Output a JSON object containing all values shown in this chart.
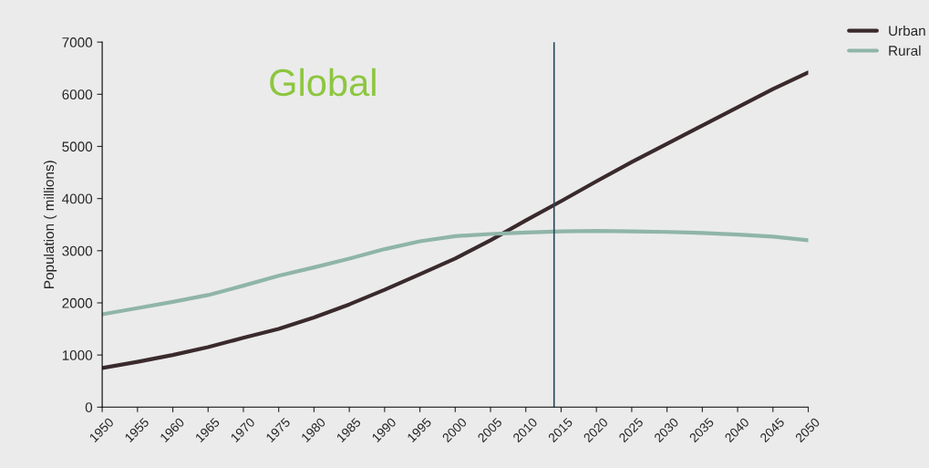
{
  "chart_data": {
    "type": "line",
    "title": "Global",
    "ylabel": "Population ( millions)",
    "x": [
      1950,
      1955,
      1960,
      1965,
      1970,
      1975,
      1980,
      1985,
      1990,
      1995,
      2000,
      2005,
      2010,
      2015,
      2020,
      2025,
      2030,
      2035,
      2040,
      2045,
      2050
    ],
    "series": [
      {
        "name": "Urban",
        "color": "#3a2a2c",
        "values": [
          750,
          870,
          1000,
          1150,
          1330,
          1500,
          1720,
          1970,
          2250,
          2550,
          2850,
          3200,
          3580,
          3950,
          4330,
          4700,
          5050,
          5400,
          5750,
          6100,
          6420
        ]
      },
      {
        "name": "Rural",
        "color": "#8fb5a8",
        "values": [
          1780,
          1900,
          2020,
          2150,
          2330,
          2520,
          2680,
          2850,
          3030,
          3180,
          3280,
          3320,
          3350,
          3370,
          3380,
          3370,
          3360,
          3340,
          3310,
          3270,
          3200
        ]
      }
    ],
    "xlim": [
      1950,
      2050
    ],
    "xticks": [
      1950,
      1955,
      1960,
      1965,
      1970,
      1975,
      1980,
      1985,
      1990,
      1995,
      2000,
      2005,
      2010,
      2015,
      2020,
      2025,
      2030,
      2035,
      2040,
      2045,
      2050
    ],
    "ylim": [
      0,
      7000
    ],
    "yticks": [
      0,
      1000,
      2000,
      3000,
      4000,
      5000,
      6000,
      7000
    ],
    "ref_lines": [
      {
        "axis": "x",
        "value": 2014,
        "color": "#2a4a5a"
      }
    ],
    "grid": false,
    "legend": "top right",
    "marker": "none",
    "line_style": "solid"
  }
}
